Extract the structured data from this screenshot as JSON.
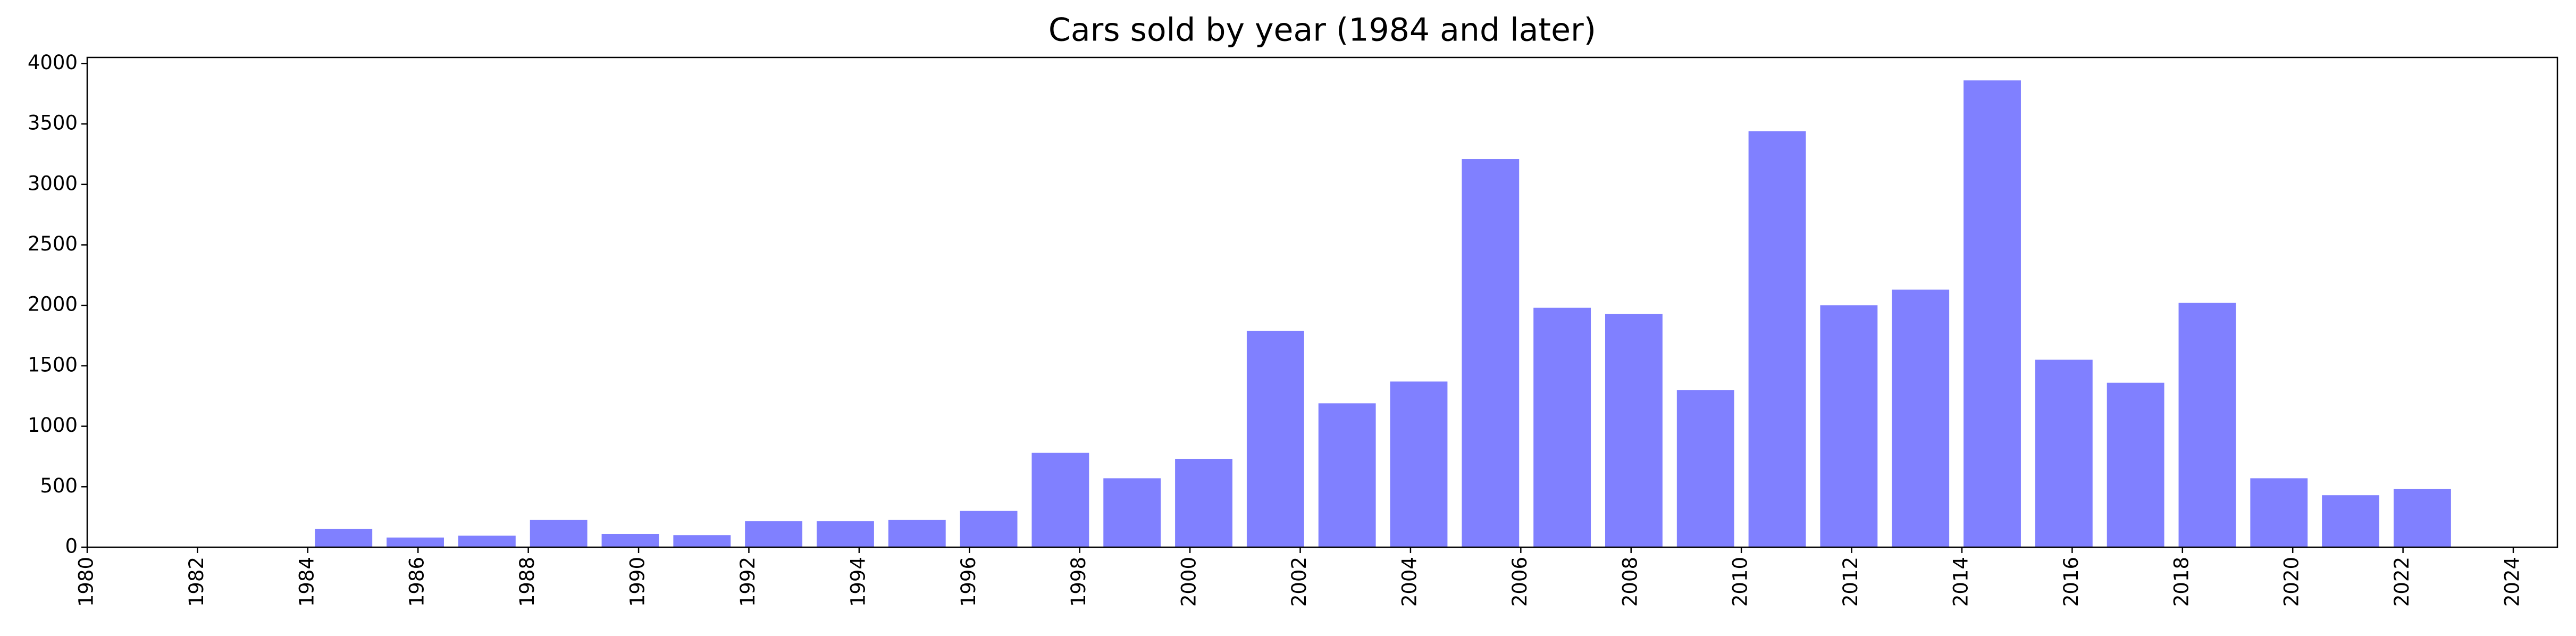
{
  "chart_data": {
    "type": "histogram",
    "title": "Cars sold by year (1984 and later)",
    "bins": [
      1984,
      1985.3,
      1986.6,
      1987.9,
      1989.2,
      1990.5,
      1991.8,
      1993.1,
      1994.4,
      1995.7,
      1997,
      1998.3,
      1999.6,
      2000.9,
      2002.2,
      2003.5,
      2004.8,
      2006.1,
      2007.4,
      2008.7,
      2010,
      2011.3,
      2012.6,
      2013.9,
      2015.2,
      2016.5,
      2017.8,
      2019.1,
      2020.4,
      2021.7,
      2023
    ],
    "counts": [
      150,
      80,
      95,
      225,
      110,
      100,
      215,
      215,
      225,
      300,
      780,
      570,
      730,
      1790,
      1190,
      1370,
      3210,
      1980,
      1930,
      1300,
      3440,
      2000,
      2130,
      3860,
      1550,
      1360,
      2020,
      570,
      430,
      480
    ],
    "color": "#8080ff",
    "xlim": [
      1980,
      2024.8
    ],
    "xticks": [
      1980,
      1982,
      1984,
      1986,
      1988,
      1990,
      1992,
      1994,
      1996,
      1998,
      2000,
      2002,
      2004,
      2006,
      2008,
      2010,
      2012,
      2014,
      2016,
      2018,
      2020,
      2022,
      2024
    ],
    "ylim": [
      0,
      4050
    ],
    "yticks": [
      0,
      500,
      1000,
      1500,
      2000,
      2500,
      3000,
      3500,
      4000
    ]
  }
}
